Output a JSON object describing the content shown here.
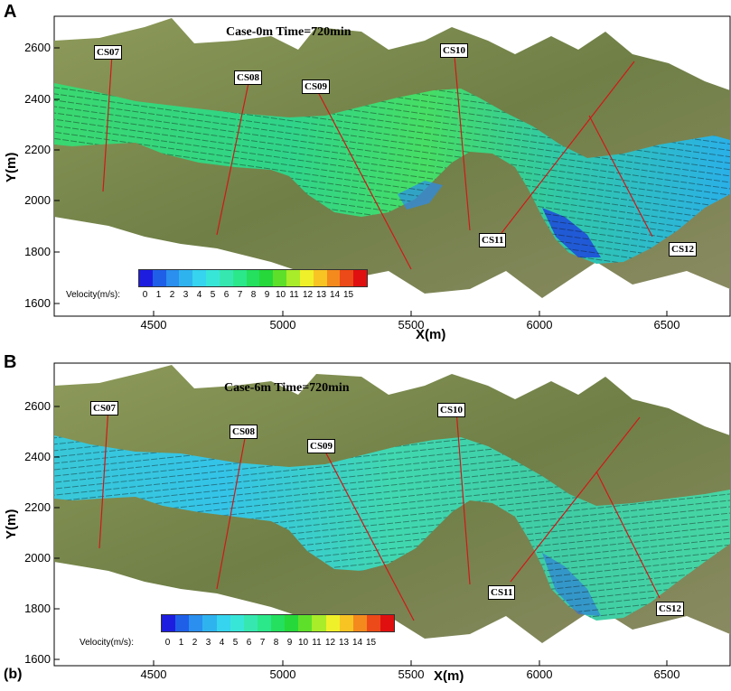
{
  "panels": [
    {
      "id": "A",
      "label": "A",
      "case_title": "Case-0m   Time=720min",
      "ylabel": "Y(m)",
      "xlabel": "X(m)",
      "yticks": [
        "2600",
        "2400",
        "2200",
        "2000",
        "1800",
        "1600"
      ],
      "xticks": [
        "4500",
        "5000",
        "5500",
        "6000",
        "6500"
      ],
      "cross_sections": [
        "CS07",
        "CS08",
        "CS09",
        "CS10",
        "CS11",
        "CS12"
      ],
      "legend_title": "Velocity(m/s):",
      "legend_values": [
        "0",
        "1",
        "2",
        "3",
        "4",
        "5",
        "6",
        "7",
        "8",
        "9",
        "10",
        "11",
        "12",
        "13",
        "14",
        "15"
      ]
    },
    {
      "id": "B",
      "label": "B",
      "bottom_label": "(b)",
      "case_title": "Case-6m   Time=720min",
      "ylabel": "Y(m)",
      "xlabel": "X(m)",
      "yticks": [
        "2600",
        "2400",
        "2200",
        "2000",
        "1800",
        "1600"
      ],
      "xticks": [
        "4500",
        "5000",
        "5500",
        "6000",
        "6500"
      ],
      "cross_sections": [
        "CS07",
        "CS08",
        "CS09",
        "CS10",
        "CS11",
        "CS12"
      ],
      "legend_title": "Velocity(m/s):",
      "legend_values": [
        "0",
        "1",
        "2",
        "3",
        "4",
        "5",
        "6",
        "7",
        "8",
        "9",
        "10",
        "11",
        "12",
        "13",
        "14",
        "15"
      ]
    }
  ],
  "colors": {
    "legend_scale": [
      "#1d1de0",
      "#1f5fe8",
      "#2a8fee",
      "#2fb3ef",
      "#36d4ee",
      "#38e6d8",
      "#36e8b0",
      "#2be88a",
      "#24e05e",
      "#26d83a",
      "#5ee02a",
      "#a8ec2a",
      "#f0f02a",
      "#f8c424",
      "#f48a1e",
      "#ec4a18",
      "#e01010"
    ],
    "river_fast_A": "#3ede6a",
    "river_slow_A": "#2e8ef0",
    "river_fast_B": "#46e69c",
    "river_slow_B": "#38c6f0",
    "terrain": "#7a8a4a",
    "section_line": "#d01818"
  }
}
